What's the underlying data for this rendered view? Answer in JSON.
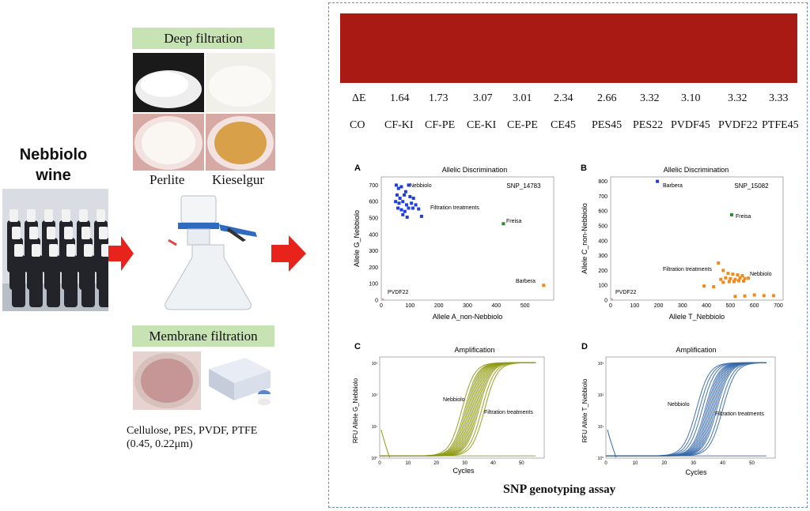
{
  "wine": {
    "title_line1": "Nebbiolo",
    "title_line2": "wine"
  },
  "deep": {
    "label": "Deep filtration",
    "perlite": "Perlite",
    "kieselgur": "Kieselgur"
  },
  "membrane": {
    "label": "Membrane filtration",
    "materials": "Cellulose,  PES,  PVDF,  PTFE",
    "sizes": "(0.45,  0.22μm)"
  },
  "colors": {
    "wine_red": "#a91a14",
    "arrow": "#e8231c",
    "label_bg": "#c7e3b4",
    "blue": "#1f3de0",
    "orange": "#f08a1c",
    "green": "#2c8a2c",
    "olive": "#8e9a12",
    "steel": "#3567a8"
  },
  "delta_e": {
    "label": "ΔE",
    "values": [
      "1.64",
      "1.73",
      "3.07",
      "3.01",
      "2.34",
      "2.66",
      "3.32",
      "3.10",
      "3.32",
      "3.33"
    ]
  },
  "samples": [
    "CO",
    "CF-KI",
    "CF-PE",
    "CE-KI",
    "CE-PE",
    "CE45",
    "PES45",
    "PES22",
    "PVDF45",
    "PVDF22",
    "PTFE45"
  ],
  "footer": {
    "bold": "SNP",
    "rest": "genotyping  assay"
  },
  "chart_data": [
    {
      "type": "scatter",
      "panel": "A",
      "title": "Allelic Discrimination",
      "tag": "SNP_14783",
      "xlabel": "Allele A_non-Nebbiolo",
      "ylabel": "Allele G_Nebbiolo",
      "xlim": [
        0,
        600
      ],
      "ylim": [
        0,
        750
      ],
      "xticks": [
        "0",
        "100",
        "200",
        "300",
        "400",
        "500"
      ],
      "yticks": [
        "0",
        "100",
        "200",
        "300",
        "400",
        "500",
        "600",
        "700"
      ],
      "annotations": [
        "Nebbiolo",
        "Filtration treatments",
        "Freisa",
        "Barbera",
        "PVDF22"
      ],
      "series": [
        {
          "label": "Nebbiolo",
          "color": "#1f3de0",
          "points": [
            [
              52,
              700
            ],
            [
              60,
              680
            ],
            [
              70,
              690
            ],
            [
              85,
              660
            ],
            [
              95,
              700
            ],
            [
              55,
              640
            ],
            [
              65,
              620
            ],
            [
              80,
              640
            ],
            [
              100,
              630
            ],
            [
              112,
              620
            ],
            [
              50,
              600
            ],
            [
              62,
              590
            ],
            [
              75,
              600
            ],
            [
              88,
              580
            ],
            [
              105,
              590
            ],
            [
              120,
              580
            ],
            [
              58,
              560
            ],
            [
              70,
              550
            ],
            [
              82,
              540
            ],
            [
              95,
              560
            ],
            [
              110,
              560
            ],
            [
              130,
              555
            ],
            [
              75,
              520
            ],
            [
              90,
              505
            ],
            [
              140,
              510
            ]
          ]
        },
        {
          "label": "Freisa",
          "color": "#2c8a2c",
          "points": [
            [
              425,
              465
            ]
          ]
        },
        {
          "label": "Barbera",
          "color": "#f08a1c",
          "points": [
            [
              565,
              90
            ]
          ]
        },
        {
          "label": "PVDF22",
          "color": "#e05050",
          "points": [
            [
              6,
              5
            ]
          ]
        }
      ]
    },
    {
      "type": "scatter",
      "panel": "B",
      "title": "Allelic Discrimination",
      "tag": "SNP_15082",
      "xlabel": "Allele T_Nebbiolo",
      "ylabel": "Allele C_non-Nebbiolo",
      "xlim": [
        0,
        720
      ],
      "ylim": [
        0,
        830
      ],
      "xticks": [
        "0",
        "100",
        "200",
        "300",
        "400",
        "500",
        "600",
        "700"
      ],
      "yticks": [
        "0",
        "100",
        "200",
        "300",
        "400",
        "500",
        "600",
        "700",
        "800"
      ],
      "annotations": [
        "Barbera",
        "Freisa",
        "Filtration treatments",
        "Nebbiolo",
        "PVDF22"
      ],
      "series": [
        {
          "label": "Barbera",
          "color": "#1f3de0",
          "points": [
            [
              195,
              800
            ]
          ]
        },
        {
          "label": "Freisa",
          "color": "#2c8a2c",
          "points": [
            [
              505,
              575
            ]
          ]
        },
        {
          "label": "Nebbiolo / Filtration treatments",
          "color": "#f08a1c",
          "points": [
            [
              450,
              250
            ],
            [
              470,
              200
            ],
            [
              490,
              180
            ],
            [
              510,
              175
            ],
            [
              530,
              170
            ],
            [
              550,
              165
            ],
            [
              460,
              140
            ],
            [
              480,
              150
            ],
            [
              500,
              145
            ],
            [
              520,
              140
            ],
            [
              540,
              150
            ],
            [
              560,
              145
            ],
            [
              575,
              148
            ],
            [
              470,
              120
            ],
            [
              495,
              125
            ],
            [
              515,
              125
            ],
            [
              535,
              130
            ],
            [
              555,
              128
            ],
            [
              390,
              95
            ],
            [
              430,
              90
            ],
            [
              600,
              35
            ],
            [
              640,
              30
            ],
            [
              680,
              30
            ],
            [
              520,
              25
            ],
            [
              560,
              28
            ]
          ]
        },
        {
          "label": "PVDF22",
          "color": "#e05050",
          "points": [
            [
              6,
              5
            ]
          ]
        }
      ]
    },
    {
      "type": "line",
      "panel": "C",
      "title": "Amplification",
      "xlabel": "Cycles",
      "ylabel": "RFU Allele G_Nebbiolo",
      "xticks": [
        "0",
        "10",
        "20",
        "30",
        "40",
        "50"
      ],
      "yticks": [
        "10°",
        "10¹",
        "10²",
        "10³"
      ],
      "annotations": [
        "Nebbiolo",
        "Filtration treatments"
      ],
      "series": [
        {
          "name": "Nebbiolo / Filtration treatments",
          "color": "#8e9a12",
          "midpoints": [
            29,
            30,
            30.5,
            31,
            31.5,
            32,
            32.5,
            33,
            33.5,
            34,
            34.5,
            35,
            36,
            37
          ]
        }
      ]
    },
    {
      "type": "line",
      "panel": "D",
      "title": "Amplification",
      "xlabel": "Cycles",
      "ylabel": "RFU Allele T_Nebbiolo",
      "xticks": [
        "0",
        "10",
        "20",
        "30",
        "40",
        "50"
      ],
      "yticks": [
        "10°",
        "10¹",
        "10²",
        "10³"
      ],
      "annotations": [
        "Nebbiolo",
        "Filtration treatments"
      ],
      "series": [
        {
          "name": "Nebbiolo / Filtration treatments",
          "color": "#3567a8",
          "midpoints": [
            31,
            32,
            33,
            34,
            34.5,
            35,
            35.5,
            36,
            36.5,
            37,
            37.5,
            38,
            39,
            40
          ]
        }
      ]
    }
  ]
}
